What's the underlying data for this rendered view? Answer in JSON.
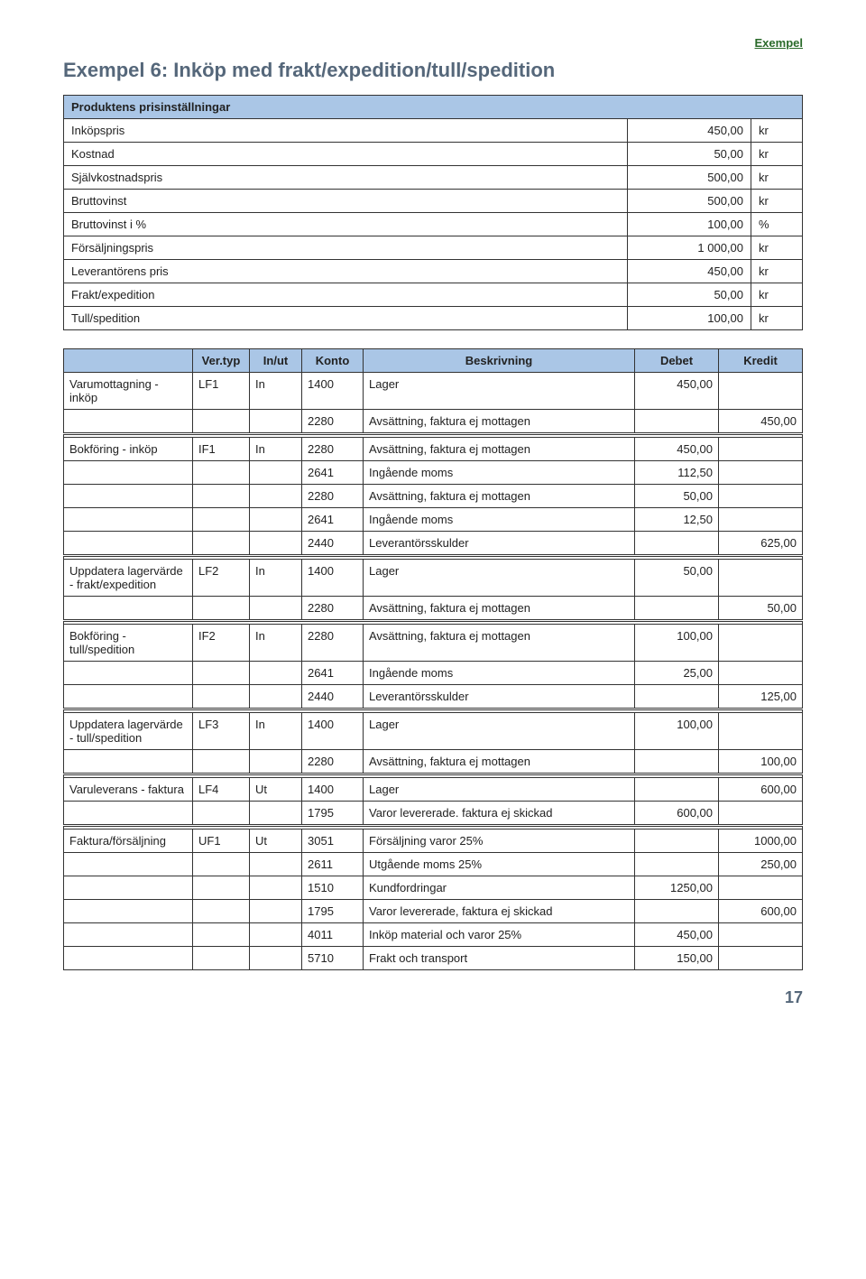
{
  "top_label": "Exempel",
  "title": "Exempel 6: Inköp med frakt/expedition/tull/spedition",
  "t1": {
    "header": "Produktens prisinställningar",
    "rows": [
      {
        "label": "Inköpspris",
        "value": "450,00",
        "unit": "kr"
      },
      {
        "label": "Kostnad",
        "value": "50,00",
        "unit": "kr"
      },
      {
        "label": "Självkostnadspris",
        "value": "500,00",
        "unit": "kr"
      },
      {
        "label": "Bruttovinst",
        "value": "500,00",
        "unit": "kr"
      },
      {
        "label": "Bruttovinst i %",
        "value": "100,00",
        "unit": "%"
      },
      {
        "label": "Försäljningspris",
        "value": "1 000,00",
        "unit": "kr"
      },
      {
        "label": "Leverantörens pris",
        "value": "450,00",
        "unit": "kr"
      },
      {
        "label": "Frakt/expedition",
        "value": "50,00",
        "unit": "kr"
      },
      {
        "label": "Tull/spedition",
        "value": "100,00",
        "unit": "kr"
      }
    ]
  },
  "t2": {
    "headers": {
      "col0": "",
      "vtyp": "Ver.typ",
      "inut": "In/ut",
      "konto": "Konto",
      "besk": "Beskrivning",
      "deb": "Debet",
      "kre": "Kredit"
    },
    "rows": [
      {
        "lead": "Varumottagning - inköp",
        "vtyp": "LF1",
        "inut": "In",
        "konto": "1400",
        "besk": "Lager",
        "deb": "450,00",
        "kre": ""
      },
      {
        "lead": "",
        "vtyp": "",
        "inut": "",
        "konto": "2280",
        "besk": "Avsättning, faktura ej mottagen",
        "deb": "",
        "kre": "450,00"
      },
      {
        "sep": true
      },
      {
        "lead": "Bokföring - inköp",
        "vtyp": "IF1",
        "inut": "In",
        "konto": "2280",
        "besk": "Avsättning, faktura ej mottagen",
        "deb": "450,00",
        "kre": ""
      },
      {
        "lead": "",
        "vtyp": "",
        "inut": "",
        "konto": "2641",
        "besk": "Ingående moms",
        "deb": "112,50",
        "kre": ""
      },
      {
        "lead": "",
        "vtyp": "",
        "inut": "",
        "konto": "2280",
        "besk": "Avsättning, faktura ej mottagen",
        "deb": "50,00",
        "kre": ""
      },
      {
        "lead": "",
        "vtyp": "",
        "inut": "",
        "konto": "2641",
        "besk": "Ingående moms",
        "deb": "12,50",
        "kre": ""
      },
      {
        "lead": "",
        "vtyp": "",
        "inut": "",
        "konto": "2440",
        "besk": "Leverantörsskulder",
        "deb": "",
        "kre": "625,00"
      },
      {
        "sep": true
      },
      {
        "lead": "Uppdatera lagervärde - frakt/expedition",
        "vtyp": "LF2",
        "inut": "In",
        "konto": "1400",
        "besk": "Lager",
        "deb": "50,00",
        "kre": ""
      },
      {
        "lead": "",
        "vtyp": "",
        "inut": "",
        "konto": "2280",
        "besk": "Avsättning, faktura ej mottagen",
        "deb": "",
        "kre": "50,00"
      },
      {
        "sep": true
      },
      {
        "lead": "Bokföring - tull/spedition",
        "vtyp": "IF2",
        "inut": "In",
        "konto": "2280",
        "besk": "Avsättning, faktura ej mottagen",
        "deb": "100,00",
        "kre": ""
      },
      {
        "lead": "",
        "vtyp": "",
        "inut": "",
        "konto": "2641",
        "besk": "Ingående moms",
        "deb": "25,00",
        "kre": ""
      },
      {
        "lead": "",
        "vtyp": "",
        "inut": "",
        "konto": "2440",
        "besk": "Leverantörsskulder",
        "deb": "",
        "kre": "125,00"
      },
      {
        "sep": true
      },
      {
        "lead": "Uppdatera lagervärde - tull/spedition",
        "vtyp": "LF3",
        "inut": "In",
        "konto": "1400",
        "besk": "Lager",
        "deb": "100,00",
        "kre": ""
      },
      {
        "lead": "",
        "vtyp": "",
        "inut": "",
        "konto": "2280",
        "besk": "Avsättning, faktura ej mottagen",
        "deb": "",
        "kre": "100,00"
      },
      {
        "sep": true
      },
      {
        "lead": "Varuleverans - faktura",
        "vtyp": "LF4",
        "inut": "Ut",
        "konto": "1400",
        "besk": "Lager",
        "deb": "",
        "kre": "600,00"
      },
      {
        "lead": "",
        "vtyp": "",
        "inut": "",
        "konto": "1795",
        "besk": "Varor levererade. faktura ej skickad",
        "deb": "600,00",
        "kre": ""
      },
      {
        "sep": true
      },
      {
        "lead": "Faktura/försäljning",
        "vtyp": "UF1",
        "inut": "Ut",
        "konto": "3051",
        "besk": "Försäljning varor 25%",
        "deb": "",
        "kre": "1000,00"
      },
      {
        "lead": "",
        "vtyp": "",
        "inut": "",
        "konto": "2611",
        "besk": "Utgående moms 25%",
        "deb": "",
        "kre": "250,00"
      },
      {
        "lead": "",
        "vtyp": "",
        "inut": "",
        "konto": "1510",
        "besk": "Kundfordringar",
        "deb": "1250,00",
        "kre": ""
      },
      {
        "lead": "",
        "vtyp": "",
        "inut": "",
        "konto": "1795",
        "besk": "Varor levererade, faktura ej skickad",
        "deb": "",
        "kre": "600,00"
      },
      {
        "lead": "",
        "vtyp": "",
        "inut": "",
        "konto": "4011",
        "besk": "Inköp material och varor 25%",
        "deb": "450,00",
        "kre": ""
      },
      {
        "lead": "",
        "vtyp": "",
        "inut": "",
        "konto": "5710",
        "besk": "Frakt och transport",
        "deb": "150,00",
        "kre": ""
      }
    ]
  },
  "page_number": "17"
}
